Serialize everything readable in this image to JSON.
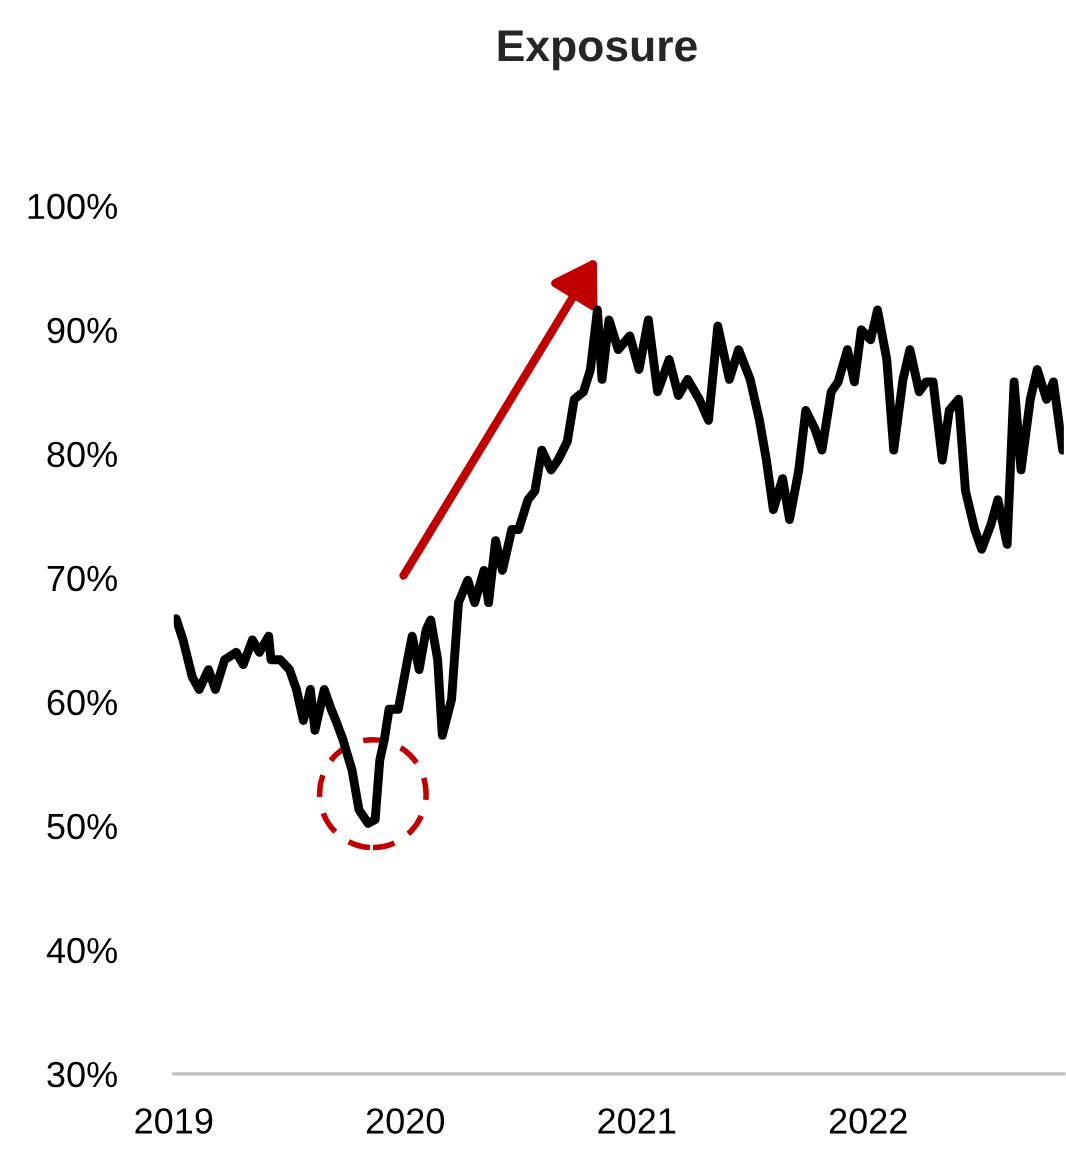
{
  "chart_data": {
    "type": "line",
    "title": "Exposure",
    "x": [
      2019.01,
      2019.04,
      2019.08,
      2019.11,
      2019.15,
      2019.18,
      2019.22,
      2019.27,
      2019.3,
      2019.34,
      2019.37,
      2019.41,
      2019.42,
      2019.46,
      2019.5,
      2019.53,
      2019.56,
      2019.59,
      2019.61,
      2019.65,
      2019.68,
      2019.7,
      2019.73,
      2019.77,
      2019.8,
      2019.84,
      2019.87,
      2019.89,
      2019.91,
      2019.93,
      2019.97,
      2020.01,
      2020.03,
      2020.06,
      2020.09,
      2020.11,
      2020.14,
      2020.16,
      2020.2,
      2020.23,
      2020.27,
      2020.3,
      2020.34,
      2020.36,
      2020.39,
      2020.42,
      2020.46,
      2020.49,
      2020.53,
      2020.56,
      2020.59,
      2020.63,
      2020.66,
      2020.7,
      2020.73,
      2020.77,
      2020.8,
      2020.83,
      2020.85,
      2020.88,
      2020.92,
      2020.97,
      2021.01,
      2021.05,
      2021.09,
      2021.14,
      2021.18,
      2021.22,
      2021.27,
      2021.31,
      2021.35,
      2021.4,
      2021.44,
      2021.49,
      2021.53,
      2021.56,
      2021.59,
      2021.63,
      2021.66,
      2021.7,
      2021.73,
      2021.77,
      2021.8,
      2021.84,
      2021.87,
      2021.91,
      2021.94,
      2021.97,
      2022.01,
      2022.04,
      2022.08,
      2022.11,
      2022.15,
      2022.18,
      2022.22,
      2022.25,
      2022.28,
      2022.32,
      2022.35,
      2022.39,
      2022.42,
      2022.46,
      2022.49,
      2022.53,
      2022.56,
      2022.6,
      2022.63,
      2022.66,
      2022.7,
      2022.73,
      2022.77,
      2022.8,
      2022.84
    ],
    "series": [
      {
        "color": "#000000",
        "values": [
          66.7,
          65,
          62,
          61,
          62.6,
          61,
          63.4,
          64,
          63,
          65,
          64,
          65.3,
          63.4,
          63.4,
          62.6,
          61,
          58.5,
          61,
          57.7,
          61,
          59.4,
          58.5,
          57,
          54.5,
          51.3,
          50.2,
          50.5,
          55.3,
          57,
          59.4,
          59.4,
          63.4,
          65.3,
          62.6,
          65.8,
          66.6,
          63.4,
          57.3,
          60.2,
          68,
          69.8,
          68,
          70.6,
          68,
          73,
          70.6,
          73.9,
          73.9,
          76.3,
          77,
          80.3,
          78.7,
          79.5,
          81,
          84.4,
          85,
          86.8,
          91.6,
          86,
          90.8,
          88.4,
          89.5,
          86.8,
          90.8,
          85,
          87.6,
          84.7,
          86,
          84.4,
          82.7,
          90.3,
          86,
          88.4,
          86,
          82.7,
          79.5,
          75.5,
          78,
          74.7,
          78.7,
          83.5,
          82,
          80.3,
          85,
          85.8,
          88.4,
          85.8,
          90,
          89.2,
          91.6,
          87.6,
          80.3,
          86,
          88.4,
          85,
          85.8,
          85.8,
          79.5,
          83.5,
          84.4,
          77,
          73.9,
          72.3,
          74.3,
          76.3,
          72.7,
          85.8,
          78.7,
          84.4,
          86.8,
          84.4,
          85.8,
          80.3
        ]
      }
    ],
    "xlim": [
      2019,
      2022.845
    ],
    "xticks": [
      2019,
      2020,
      2021,
      2022
    ],
    "ylim": [
      30,
      100
    ],
    "yticks": [
      {
        "value": 30,
        "label": "30%"
      },
      {
        "value": 40,
        "label": "40%"
      },
      {
        "value": 50,
        "label": "50%"
      },
      {
        "value": 60,
        "label": "60%"
      },
      {
        "value": 70,
        "label": "70%"
      },
      {
        "value": 80,
        "label": "80%"
      },
      {
        "value": 90,
        "label": "90%"
      },
      {
        "value": 100,
        "label": "100%"
      }
    ],
    "grid": false,
    "legend": false,
    "line_style": "solid"
  }
}
